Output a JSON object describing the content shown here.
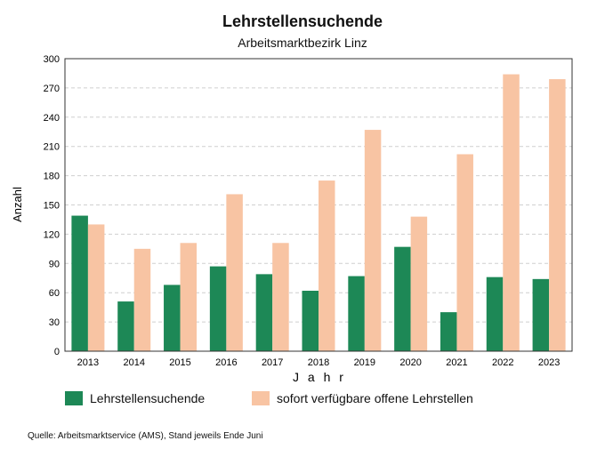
{
  "chart_data": {
    "type": "bar",
    "title": "Lehrstellensuchende",
    "subtitle": "Arbeitsmarktbezirk Linz",
    "xlabel": "J a h r",
    "ylabel": "Anzahl",
    "ylim": [
      0,
      300
    ],
    "yticks": [
      0,
      30,
      60,
      90,
      120,
      150,
      180,
      210,
      240,
      270,
      300
    ],
    "grid": "horizontal dashed",
    "legend_position": "bottom",
    "categories": [
      "2013",
      "2014",
      "2015",
      "2016",
      "2017",
      "2018",
      "2019",
      "2020",
      "2021",
      "2022",
      "2023"
    ],
    "series": [
      {
        "name": "Lehrstellensuchende",
        "color": "#1d8856",
        "values": [
          139,
          51,
          68,
          87,
          79,
          62,
          77,
          107,
          40,
          76,
          74
        ]
      },
      {
        "name": "sofort verfügbare offene Lehrstellen",
        "color": "#f8c4a3",
        "values": [
          130,
          105,
          111,
          161,
          111,
          175,
          227,
          138,
          202,
          284,
          279
        ]
      }
    ],
    "source": "Quelle: Arbeitsmarktservice (AMS), Stand jeweils Ende Juni"
  }
}
